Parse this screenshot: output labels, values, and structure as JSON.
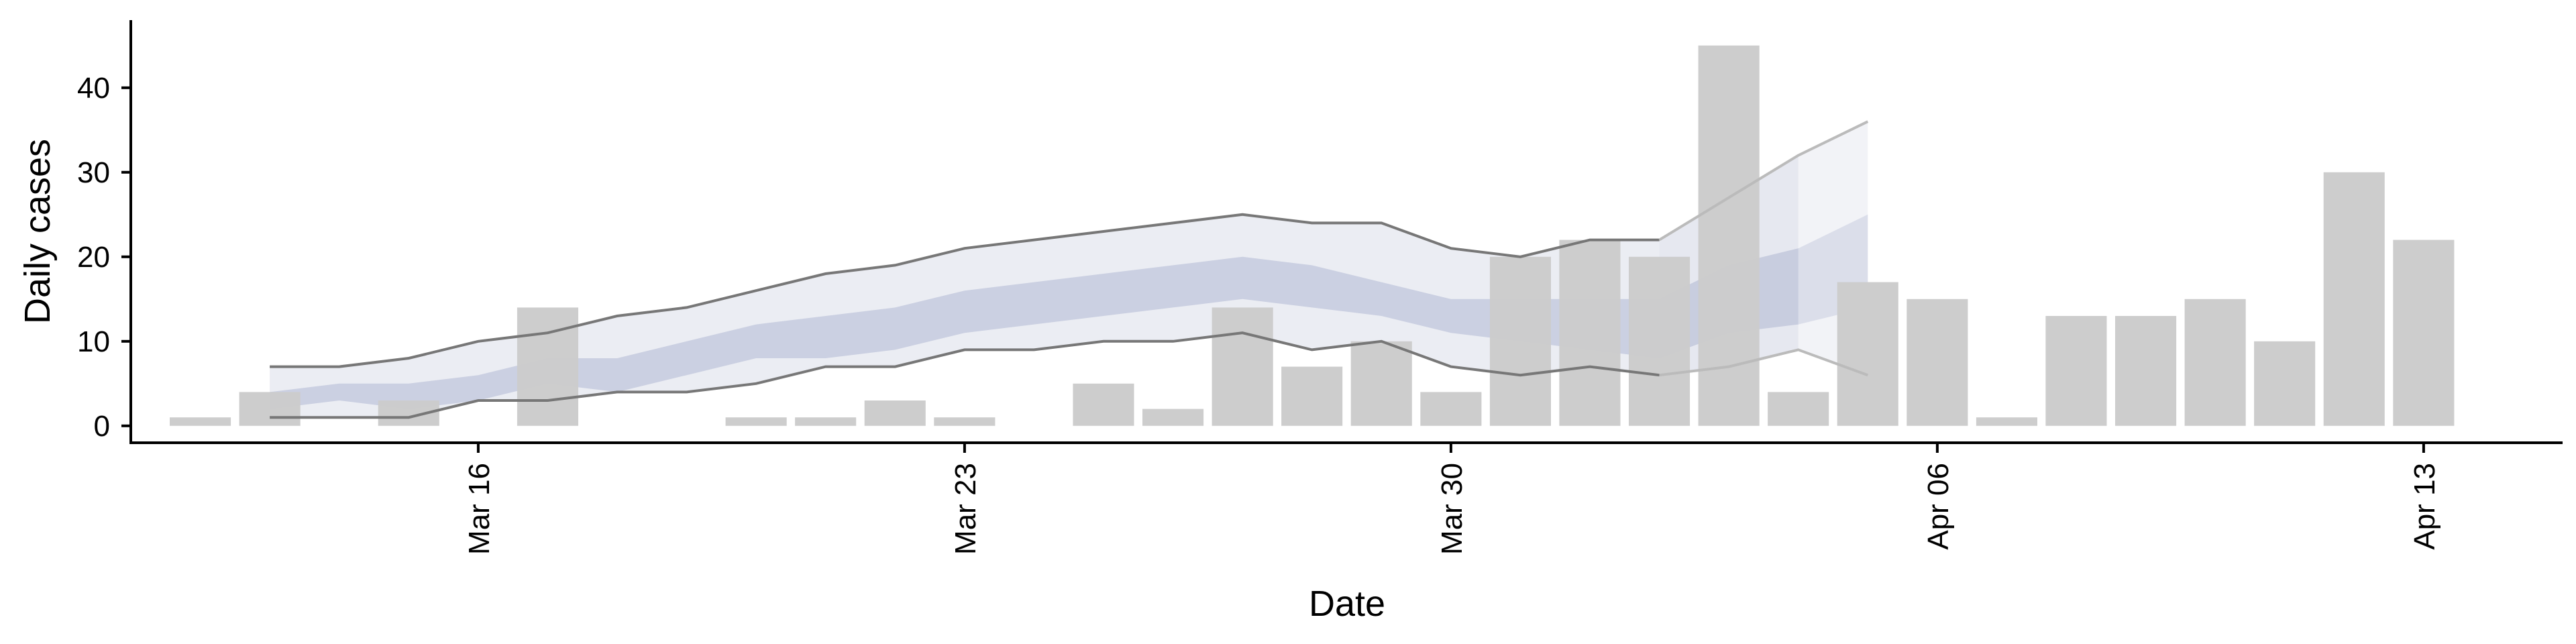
{
  "chart_data": {
    "type": "bar",
    "xlabel": "Date",
    "ylabel": "Daily cases",
    "xlim": [
      "2020-03-11",
      "2020-04-15"
    ],
    "ylim": [
      -2,
      48
    ],
    "x_ticks": [
      {
        "date": "2020-03-16",
        "label": "Mar 16"
      },
      {
        "date": "2020-03-23",
        "label": "Mar 23"
      },
      {
        "date": "2020-03-30",
        "label": "Mar 30"
      },
      {
        "date": "2020-04-06",
        "label": "Apr 06"
      },
      {
        "date": "2020-04-13",
        "label": "Apr 13"
      }
    ],
    "y_ticks": [
      0,
      10,
      20,
      30,
      40
    ],
    "grid": false,
    "bars": {
      "color": "#cccccc",
      "dates": [
        "2020-03-12",
        "2020-03-13",
        "2020-03-14",
        "2020-03-15",
        "2020-03-16",
        "2020-03-17",
        "2020-03-18",
        "2020-03-19",
        "2020-03-20",
        "2020-03-21",
        "2020-03-22",
        "2020-03-23",
        "2020-03-24",
        "2020-03-25",
        "2020-03-26",
        "2020-03-27",
        "2020-03-28",
        "2020-03-29",
        "2020-03-30",
        "2020-03-31",
        "2020-04-01",
        "2020-04-02",
        "2020-04-03",
        "2020-04-04",
        "2020-04-05",
        "2020-04-06",
        "2020-04-07",
        "2020-04-08",
        "2020-04-09",
        "2020-04-10",
        "2020-04-11",
        "2020-04-12",
        "2020-04-13"
      ],
      "values": [
        1,
        4,
        0,
        3,
        0,
        14,
        0,
        0,
        1,
        1,
        3,
        1,
        0,
        5,
        2,
        14,
        7,
        10,
        4,
        20,
        22,
        20,
        45,
        4,
        17,
        15,
        1,
        13,
        13,
        15,
        10,
        30,
        22
      ]
    },
    "bands": {
      "dates": [
        "2020-03-13",
        "2020-03-14",
        "2020-03-15",
        "2020-03-16",
        "2020-03-17",
        "2020-03-18",
        "2020-03-19",
        "2020-03-20",
        "2020-03-21",
        "2020-03-22",
        "2020-03-23",
        "2020-03-24",
        "2020-03-25",
        "2020-03-26",
        "2020-03-27",
        "2020-03-28",
        "2020-03-29",
        "2020-03-30",
        "2020-03-31",
        "2020-04-01",
        "2020-04-02",
        "2020-04-03",
        "2020-04-04"
      ],
      "outer_color": "#dfe2ec",
      "inner_color": "#b8bfd6",
      "outer_lower": [
        1,
        1,
        1,
        3,
        3,
        4,
        4,
        5,
        7,
        7,
        9,
        9,
        10,
        10,
        11,
        9,
        10,
        7,
        6,
        7,
        6,
        7,
        9
      ],
      "outer_upper": [
        7,
        7,
        8,
        10,
        11,
        13,
        14,
        16,
        18,
        19,
        21,
        22,
        23,
        24,
        25,
        24,
        24,
        21,
        20,
        22,
        22,
        27,
        32
      ],
      "inner_lower": [
        2,
        3,
        2,
        3,
        5,
        4,
        6,
        8,
        8,
        9,
        11,
        12,
        13,
        14,
        15,
        14,
        13,
        11,
        10,
        9,
        8,
        11,
        12
      ],
      "inner_upper": [
        4,
        5,
        5,
        6,
        8,
        8,
        10,
        12,
        13,
        14,
        16,
        17,
        18,
        19,
        20,
        19,
        17,
        15,
        15,
        15,
        15,
        19,
        21
      ],
      "projection": {
        "dates": [
          "2020-04-02",
          "2020-04-03",
          "2020-04-04",
          "2020-04-05"
        ],
        "outer_lower": [
          6,
          7,
          9,
          6
        ],
        "outer_upper": [
          22,
          27,
          32,
          36
        ],
        "inner_lower": [
          8,
          11,
          12,
          14
        ],
        "inner_upper": [
          15,
          19,
          21,
          25
        ]
      }
    },
    "interval_lines": {
      "color": "#777777",
      "upper": [
        7,
        7,
        8,
        10,
        11,
        13,
        14,
        16,
        18,
        19,
        21,
        22,
        23,
        24,
        25,
        24,
        24,
        21,
        20,
        22,
        22
      ],
      "lower": [
        1,
        1,
        1,
        3,
        3,
        4,
        4,
        5,
        7,
        7,
        9,
        9,
        10,
        10,
        11,
        9,
        10,
        7,
        6,
        7,
        6
      ],
      "projection_color": "#bbbbbb",
      "projection_upper": [
        22,
        27,
        32,
        36
      ],
      "projection_lower": [
        6,
        7,
        9,
        6
      ]
    }
  }
}
